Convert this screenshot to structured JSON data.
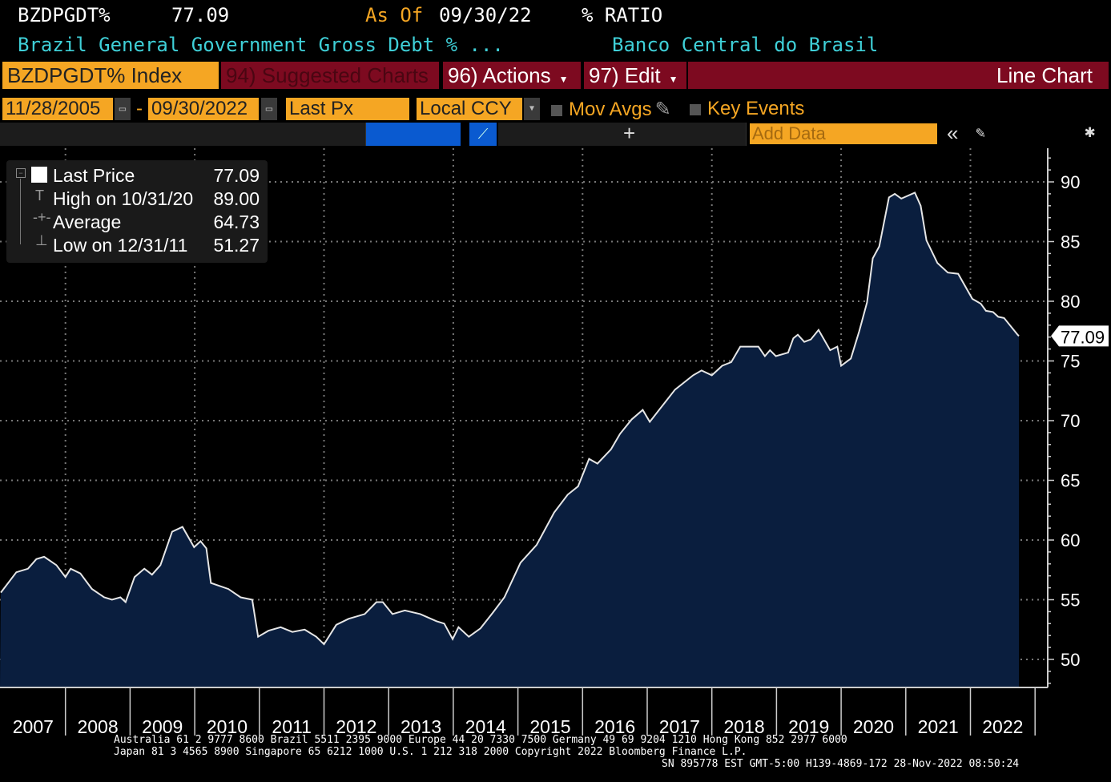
{
  "header": {
    "ticker": "BZDPGDT%",
    "last_value": "77.09",
    "as_of_label": "As Of",
    "as_of_date": "09/30/22",
    "unit": "% RATIO",
    "description": "Brazil General Government Gross Debt % ...",
    "source": "Banco Central do Brasil"
  },
  "toolbar": {
    "security": "BZDPGDT% Index",
    "suggested_charts": "94) Suggested Charts",
    "actions": "96) Actions",
    "edit": "97) Edit",
    "chart_type": "Line Chart",
    "start_date": "11/28/2005",
    "dash": "-",
    "end_date": "09/30/2022",
    "field": "Last Px",
    "currency": "Local CCY",
    "mov_avgs": "Mov Avgs",
    "key_events": "Key Events",
    "add_data_placeholder": "Add Data",
    "plus": "+",
    "collapse": "«"
  },
  "legend": [
    {
      "label": "Last Price",
      "value": "77.09"
    },
    {
      "label": "High on 10/31/20",
      "value": "89.00"
    },
    {
      "label": "Average",
      "value": "64.73"
    },
    {
      "label": "Low on 12/31/11",
      "value": "51.27"
    }
  ],
  "footer": {
    "line1": "Australia 61 2 9777 8600 Brazil 5511 2395 9000 Europe 44 20 7330 7500 Germany 49 69 9204 1210 Hong Kong 852 2977 6000",
    "line2": "Japan 81 3 4565 8900      Singapore 65 6212 1000      U.S. 1 212 318 2000      Copyright 2022 Bloomberg Finance L.P.",
    "line3": "SN 895778 EST  GMT-5:00 H139-4869-172 28-Nov-2022 08:50:24"
  },
  "colors": {
    "fill": "#0a1e3e",
    "line": "#e6e6e6",
    "orange": "#f5a623",
    "maroon": "#7d0a20",
    "cyan": "#3fd0d8"
  },
  "chart_data": {
    "type": "area",
    "title": "BZDPGDT% Index",
    "xlabel": "",
    "ylabel": "% RATIO",
    "ylim": [
      47.5,
      92.5
    ],
    "xlim": [
      2007.0,
      2023.1
    ],
    "yticks": [
      50,
      55,
      60,
      65,
      70,
      75,
      80,
      85,
      90
    ],
    "xtick_labels": [
      "2007",
      "2008",
      "2009",
      "2010",
      "2011",
      "2012",
      "2013",
      "2014",
      "2015",
      "2016",
      "2017",
      "2018",
      "2019",
      "2020",
      "2021",
      "2022"
    ],
    "last_value_label": "77.09",
    "grid": true,
    "series": [
      {
        "name": "Last Price",
        "x": [
          2007.0,
          2007.24,
          2007.42,
          2007.55,
          2007.67,
          2007.86,
          2008.0,
          2008.08,
          2008.23,
          2008.41,
          2008.6,
          2008.72,
          2008.85,
          2008.93,
          2009.07,
          2009.22,
          2009.34,
          2009.47,
          2009.65,
          2009.81,
          2009.99,
          2010.09,
          2010.18,
          2010.25,
          2010.52,
          2010.71,
          2010.89,
          2010.98,
          2011.14,
          2011.33,
          2011.51,
          2011.7,
          2011.88,
          2012.0,
          2012.19,
          2012.38,
          2012.63,
          2012.81,
          2012.91,
          2013.06,
          2013.25,
          2013.49,
          2013.74,
          2013.86,
          2013.99,
          2014.08,
          2014.24,
          2014.42,
          2014.61,
          2014.79,
          2015.04,
          2015.29,
          2015.56,
          2015.77,
          2015.93,
          2016.1,
          2016.23,
          2016.44,
          2016.58,
          2016.76,
          2016.93,
          2017.04,
          2017.27,
          2017.43,
          2017.71,
          2017.84,
          2018.0,
          2018.16,
          2018.3,
          2018.44,
          2018.72,
          2018.82,
          2018.9,
          2018.99,
          2019.18,
          2019.26,
          2019.33,
          2019.43,
          2019.53,
          2019.65,
          2019.83,
          2019.94,
          2020.0,
          2020.15,
          2020.28,
          2020.4,
          2020.49,
          2020.59,
          2020.74,
          2020.83,
          2020.93,
          2021.14,
          2021.23,
          2021.32,
          2021.49,
          2021.65,
          2021.81,
          2022.03,
          2022.16,
          2022.24,
          2022.35,
          2022.43,
          2022.52,
          2022.73,
          2022.75
        ],
        "y": [
          55.6,
          57.3,
          57.6,
          58.4,
          58.6,
          57.9,
          56.9,
          57.6,
          57.2,
          55.9,
          55.2,
          55.0,
          55.2,
          54.8,
          56.9,
          57.6,
          57.1,
          57.9,
          60.7,
          61.1,
          59.4,
          59.9,
          59.3,
          56.4,
          55.9,
          55.2,
          55.0,
          51.9,
          52.4,
          52.7,
          52.3,
          52.5,
          51.9,
          51.27,
          52.9,
          53.4,
          53.8,
          54.8,
          54.8,
          53.8,
          54.1,
          53.8,
          53.2,
          53.0,
          51.7,
          52.7,
          51.9,
          52.6,
          53.9,
          55.2,
          58.1,
          59.6,
          62.3,
          63.8,
          64.5,
          66.8,
          66.4,
          67.6,
          68.9,
          70.1,
          70.9,
          69.9,
          71.5,
          72.6,
          73.8,
          74.2,
          73.8,
          74.6,
          74.9,
          76.2,
          76.2,
          75.4,
          75.9,
          75.4,
          75.7,
          76.9,
          77.2,
          76.6,
          76.8,
          77.6,
          75.9,
          76.2,
          74.6,
          75.2,
          77.5,
          79.9,
          83.6,
          84.6,
          88.7,
          89.0,
          88.6,
          89.1,
          88.0,
          85.1,
          83.2,
          82.4,
          82.3,
          80.2,
          79.8,
          79.2,
          79.1,
          78.7,
          78.6,
          77.2,
          77.09
        ]
      }
    ]
  }
}
